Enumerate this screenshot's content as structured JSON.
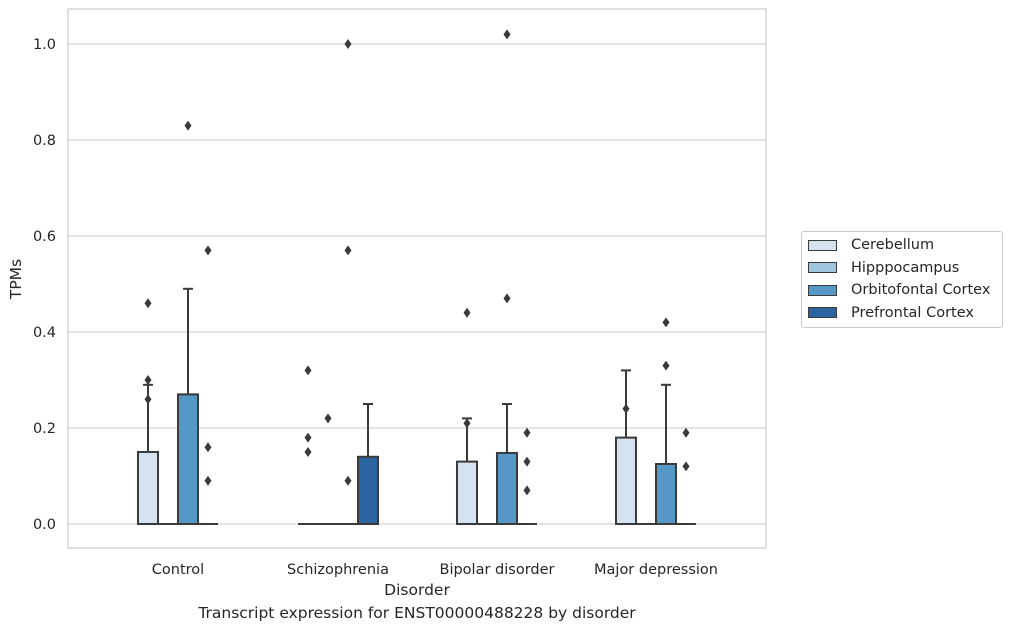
{
  "caption": "Transcript expression for ENST00000488228 by disorder",
  "chart_data": {
    "type": "boxplot",
    "xlabel": "Disorder",
    "ylabel": "TPMs",
    "ylim": [
      -0.05,
      1.07
    ],
    "yticks": [
      0.0,
      0.2,
      0.4,
      0.6,
      0.8,
      1.0
    ],
    "ytick_labels": [
      "0.0",
      "0.2",
      "0.4",
      "0.6",
      "0.8",
      "1.0"
    ],
    "grid": "horizontal",
    "legend_position": "right, outside",
    "categories": [
      "Control",
      "Schizophrenia",
      "Bipolar disorder",
      "Major depression"
    ],
    "series": [
      {
        "name": "Cerebellum",
        "color": "#d5e3f0",
        "boxes": [
          {
            "q1": 0.0,
            "median": 0.0,
            "q3": 0.15,
            "whisker_low": 0.0,
            "whisker_high": 0.29,
            "outliers": [
              0.46,
              0.3,
              0.26
            ]
          },
          {
            "q1": 0.0,
            "median": 0.0,
            "q3": 0.0,
            "whisker_low": 0.0,
            "whisker_high": 0.0,
            "outliers": [
              0.32,
              0.18,
              0.15
            ]
          },
          {
            "q1": 0.0,
            "median": 0.0,
            "q3": 0.13,
            "whisker_low": 0.0,
            "whisker_high": 0.22,
            "outliers": [
              0.44,
              0.21
            ]
          },
          {
            "q1": 0.0,
            "median": 0.0,
            "q3": 0.18,
            "whisker_low": 0.0,
            "whisker_high": 0.32,
            "outliers": [
              0.24
            ]
          }
        ]
      },
      {
        "name": "Hipppocampus",
        "color": "#9fc5df",
        "boxes": [
          {
            "q1": 0.0,
            "median": 0.0,
            "q3": 0.0,
            "whisker_low": 0.0,
            "whisker_high": 0.0,
            "outliers": []
          },
          {
            "q1": 0.0,
            "median": 0.0,
            "q3": 0.0,
            "whisker_low": 0.0,
            "whisker_high": 0.0,
            "outliers": [
              0.22
            ]
          },
          {
            "q1": 0.0,
            "median": 0.0,
            "q3": 0.0,
            "whisker_low": 0.0,
            "whisker_high": 0.0,
            "outliers": []
          },
          {
            "q1": 0.0,
            "median": 0.0,
            "q3": 0.0,
            "whisker_low": 0.0,
            "whisker_high": 0.0,
            "outliers": []
          }
        ]
      },
      {
        "name": "Orbitofontal Cortex",
        "color": "#5597c5",
        "boxes": [
          {
            "q1": 0.0,
            "median": 0.0,
            "q3": 0.27,
            "whisker_low": 0.0,
            "whisker_high": 0.49,
            "outliers": [
              0.83
            ]
          },
          {
            "q1": 0.0,
            "median": 0.0,
            "q3": 0.0,
            "whisker_low": 0.0,
            "whisker_high": 0.0,
            "outliers": [
              1.0,
              0.57,
              0.09
            ]
          },
          {
            "q1": 0.0,
            "median": 0.0,
            "q3": 0.148,
            "whisker_low": 0.0,
            "whisker_high": 0.25,
            "outliers": [
              1.02,
              0.47
            ]
          },
          {
            "q1": 0.0,
            "median": 0.0,
            "q3": 0.125,
            "whisker_low": 0.0,
            "whisker_high": 0.29,
            "outliers": [
              0.42,
              0.33
            ]
          }
        ]
      },
      {
        "name": "Prefrontal Cortex",
        "color": "#2a65a2",
        "boxes": [
          {
            "q1": 0.0,
            "median": 0.0,
            "q3": 0.0,
            "whisker_low": 0.0,
            "whisker_high": 0.0,
            "outliers": [
              0.57,
              0.16,
              0.09
            ]
          },
          {
            "q1": 0.0,
            "median": 0.0,
            "q3": 0.14,
            "whisker_low": 0.0,
            "whisker_high": 0.25,
            "outliers": []
          },
          {
            "q1": 0.0,
            "median": 0.0,
            "q3": 0.0,
            "whisker_low": 0.0,
            "whisker_high": 0.0,
            "outliers": [
              0.19,
              0.13,
              0.07
            ]
          },
          {
            "q1": 0.0,
            "median": 0.0,
            "q3": 0.0,
            "whisker_low": 0.0,
            "whisker_high": 0.0,
            "outliers": [
              0.19,
              0.12
            ]
          }
        ]
      }
    ]
  }
}
